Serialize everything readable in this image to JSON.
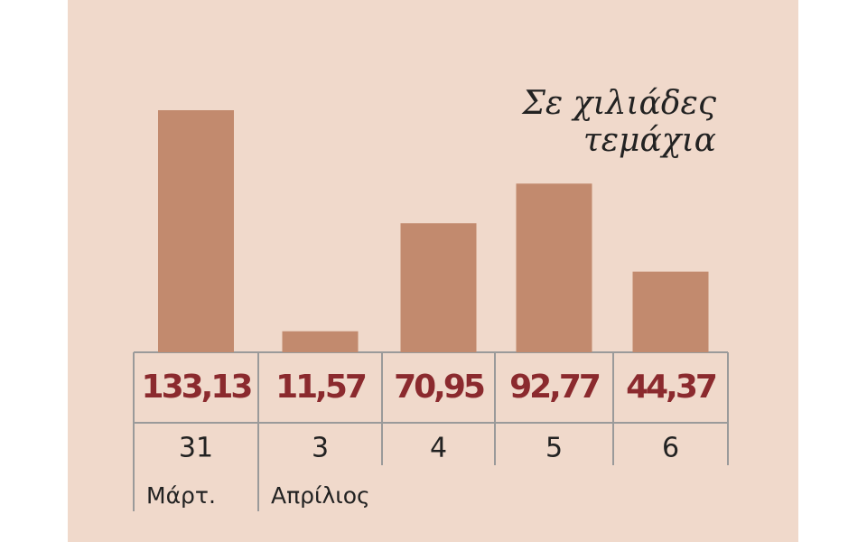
{
  "chart_data": {
    "type": "bar",
    "annotation": [
      "Σε χιλιάδες",
      "τεμάχια"
    ],
    "categories": [
      "31",
      "3",
      "4",
      "5",
      "6"
    ],
    "month_labels": [
      "Μάρτ.",
      "Απρίλιος",
      null,
      null,
      null
    ],
    "values": [
      133.13,
      11.57,
      70.95,
      92.77,
      44.37
    ],
    "value_labels": [
      "133,13",
      "11,57",
      "70,95",
      "92,77",
      "44,37"
    ],
    "color": "#c28a6e"
  }
}
